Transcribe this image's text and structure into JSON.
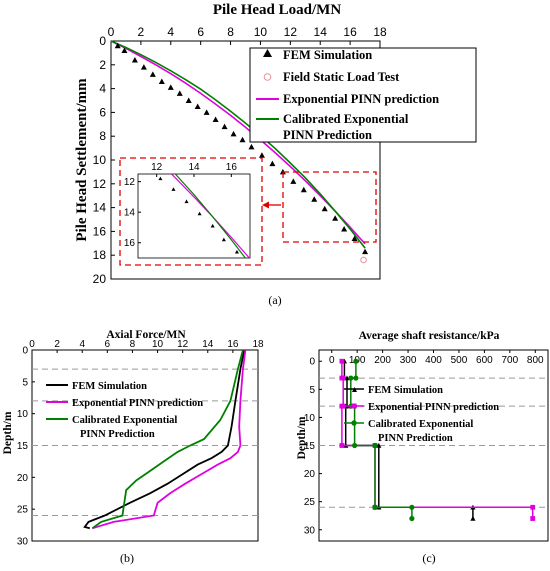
{
  "chart_data": [
    {
      "type": "scatter",
      "panel_label": "(a)",
      "xlabel": "Pile Head Load/MN",
      "ylabel": "Pile Head Settlement/mm",
      "xlim": [
        0,
        18
      ],
      "ylim": [
        20,
        0
      ],
      "x_ticks": [
        "0",
        "2",
        "4",
        "6",
        "8",
        "10",
        "12",
        "14",
        "16",
        "18"
      ],
      "y_ticks": [
        "0",
        "2",
        "4",
        "6",
        "8",
        "10",
        "12",
        "14",
        "16",
        "18",
        "20"
      ],
      "legend_position": "top-right",
      "series": [
        {
          "name": "FEM Simulation",
          "style": "triangle",
          "color": "#000000",
          "x": [
            0.45,
            0.9,
            1.6,
            2.2,
            2.8,
            3.4,
            4.0,
            4.6,
            5.2,
            5.8,
            6.4,
            7.0,
            7.6,
            8.2,
            8.8,
            9.4,
            10.1,
            10.8,
            11.5,
            12.2,
            12.9,
            13.6,
            14.3,
            15.0,
            15.6,
            16.3,
            17.0
          ],
          "y": [
            0.4,
            0.8,
            1.6,
            2.2,
            2.8,
            3.4,
            3.9,
            4.4,
            5.0,
            5.5,
            6.0,
            6.6,
            7.2,
            7.8,
            8.3,
            8.9,
            9.6,
            10.3,
            11.0,
            11.8,
            12.5,
            13.3,
            14.1,
            14.9,
            15.8,
            16.6,
            17.7
          ]
        },
        {
          "name": "Field Static Load Test",
          "style": "circle",
          "color": "#e8909c",
          "x": [
            16.9
          ],
          "y": [
            18.4
          ]
        },
        {
          "name": "Exponential PINN prediction",
          "style": "line",
          "color": "#e000e0",
          "x": [
            0,
            1,
            2,
            3,
            4,
            5,
            6,
            7,
            8,
            9,
            10,
            11,
            12,
            13,
            14,
            15,
            16,
            17
          ],
          "y": [
            0,
            0.62,
            1.3,
            2.0,
            2.75,
            3.55,
            4.4,
            5.3,
            6.25,
            7.25,
            8.3,
            9.4,
            10.55,
            11.75,
            13.0,
            14.3,
            15.65,
            17.05
          ]
        },
        {
          "name": "Calibrated Exponential PINN Prediction",
          "style": "line",
          "color": "#008000",
          "x": [
            0,
            1,
            2,
            3,
            4,
            5,
            6,
            7,
            8,
            9,
            10,
            11,
            12,
            13,
            14,
            15,
            16,
            17
          ],
          "y": [
            0,
            0.55,
            1.15,
            1.8,
            2.5,
            3.25,
            4.05,
            4.95,
            5.9,
            6.9,
            7.95,
            9.05,
            10.25,
            11.5,
            12.85,
            14.3,
            15.8,
            17.4
          ]
        }
      ],
      "inset": {
        "xlim": [
          11,
          17
        ],
        "ylim": [
          11.5,
          17
        ],
        "x_ticks": [
          "12",
          "14",
          "16"
        ],
        "y_ticks": [
          "12",
          "14",
          "16"
        ]
      }
    },
    {
      "type": "line",
      "panel_label": "(b)",
      "xlabel": "Axial Force/MN",
      "ylabel": "Depth/m",
      "xlim": [
        0,
        18
      ],
      "ylim": [
        30,
        0
      ],
      "x_ticks": [
        "0",
        "2",
        "4",
        "6",
        "8",
        "10",
        "12",
        "14",
        "16",
        "18"
      ],
      "y_ticks": [
        "0",
        "5",
        "10",
        "15",
        "20",
        "25",
        "30"
      ],
      "reference_lines_depth": [
        3,
        8,
        15,
        26
      ],
      "legend_position": "top-left",
      "series": [
        {
          "name": "FEM Simulation",
          "color": "#000000",
          "force": [
            16.9,
            16.6,
            16.2,
            15.9,
            15.6,
            15.1,
            14.3,
            13.2,
            12.0,
            10.8,
            9.4,
            7.8,
            5.8,
            4.5,
            4.2,
            4.6
          ],
          "depth": [
            0,
            3,
            8,
            12,
            15,
            16,
            17,
            18,
            19.5,
            21,
            22.5,
            24,
            26,
            27,
            27.8,
            28
          ]
        },
        {
          "name": "Exponential PINN prediction",
          "color": "#e000e0",
          "force": [
            17.0,
            16.8,
            16.6,
            16.5,
            16.6,
            16.4,
            15.8,
            14.8,
            13.5,
            12.2,
            11.0,
            10.0,
            9.7,
            6.5,
            4.8
          ],
          "depth": [
            0,
            3,
            8,
            12,
            15,
            16,
            17,
            18,
            19.5,
            21,
            22.5,
            24,
            26,
            27,
            28
          ]
        },
        {
          "name": "Calibrated Exponential PINN Prediction",
          "color": "#008000",
          "force": [
            16.8,
            16.4,
            15.8,
            15.0,
            13.7,
            12.6,
            11.6,
            10.5,
            9.4,
            8.3,
            7.5,
            7.2,
            5.5,
            4.8
          ],
          "depth": [
            0,
            3,
            8,
            11,
            14,
            15,
            16,
            17.5,
            19,
            20.5,
            22,
            26,
            27,
            28
          ]
        }
      ]
    },
    {
      "type": "line",
      "panel_label": "(c)",
      "xlabel": "Average shaft resistance/kPa",
      "ylabel": "Depth/m",
      "xlim": [
        -50,
        850
      ],
      "ylim": [
        32,
        -2
      ],
      "x_ticks": [
        "0",
        "100",
        "200",
        "300",
        "400",
        "500",
        "600",
        "700",
        "800"
      ],
      "y_ticks": [
        "0",
        "5",
        "10",
        "15",
        "20",
        "25",
        "30"
      ],
      "reference_lines_depth": [
        3,
        8,
        15,
        26
      ],
      "legend_position": "top-left",
      "series": [
        {
          "name": "FEM Simulation",
          "color": "#000000",
          "segments": [
            {
              "value": 50,
              "from": 0,
              "to": 3
            },
            {
              "value": 60,
              "from": 3,
              "to": 8
            },
            {
              "value": 55,
              "from": 8,
              "to": 15
            },
            {
              "value": 185,
              "from": 15,
              "to": 26
            },
            {
              "value": 555,
              "from": 26,
              "to": 28
            }
          ]
        },
        {
          "name": "Exponential PINN prediction",
          "color": "#e000e0",
          "segments": [
            {
              "value": 40,
              "from": 0,
              "to": 3
            },
            {
              "value": 45,
              "from": 3,
              "to": 8
            },
            {
              "value": 40,
              "from": 8,
              "to": 15
            },
            {
              "value": 170,
              "from": 15,
              "to": 26
            },
            {
              "value": 790,
              "from": 26,
              "to": 28
            }
          ]
        },
        {
          "name": "Calibrated Exponential PINN Prediction",
          "color": "#008000",
          "segments": [
            {
              "value": 95,
              "from": 0,
              "to": 3
            },
            {
              "value": 75,
              "from": 3,
              "to": 8
            },
            {
              "value": 90,
              "from": 8,
              "to": 15
            },
            {
              "value": 170,
              "from": 15,
              "to": 26
            },
            {
              "value": 315,
              "from": 26,
              "to": 28
            }
          ]
        }
      ]
    }
  ],
  "legend_a": {
    "fem": "FEM Simulation",
    "field": "Field Static Load Test",
    "exp": "Exponential PINN prediction",
    "cal1": "Calibrated Exponential",
    "cal2": "PINN Prediction"
  },
  "legend_b": {
    "fem": "FEM Simulation",
    "exp": "Exponential PINN prediction",
    "cal1": "Calibrated Exponential",
    "cal2": "PINN Prediction"
  },
  "legend_c": {
    "fem": "FEM Simulation",
    "exp": "Exponential PINN prediction",
    "cal1": "Calibrated Exponential",
    "cal2": "PINN Prediction"
  },
  "colors": {
    "fem": "#000000",
    "field": "#e8909c",
    "exp": "#e000e0",
    "cal": "#008000",
    "highlight": "#e00000",
    "reference": "#999999"
  }
}
